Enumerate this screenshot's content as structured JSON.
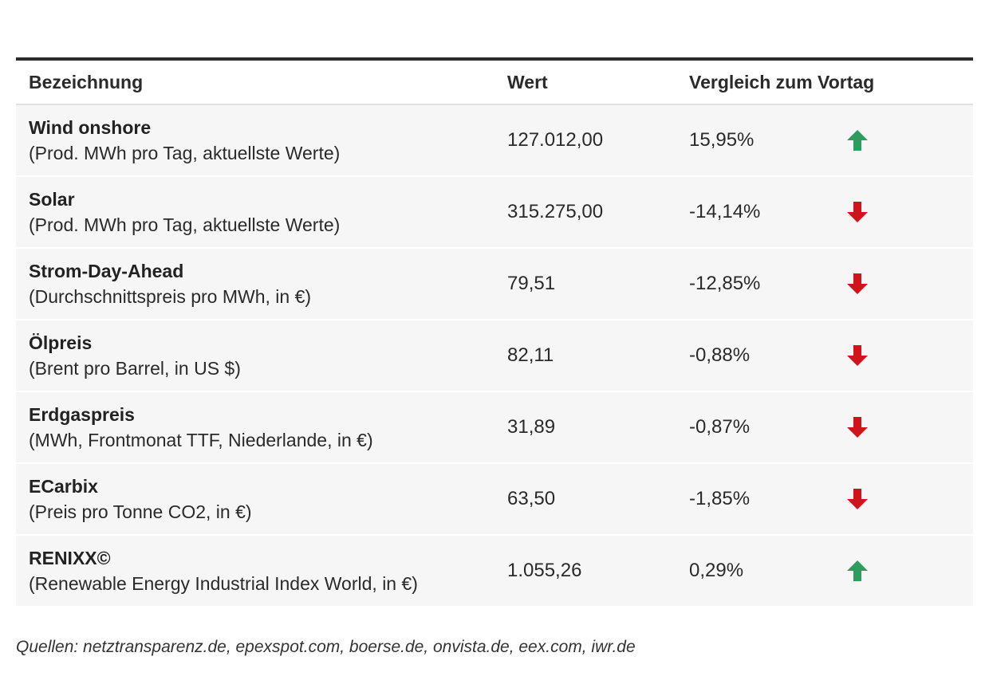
{
  "table": {
    "headers": {
      "name": "Bezeichnung",
      "value": "Wert",
      "change": "Vergleich zum Vortag"
    },
    "rows": [
      {
        "name": "Wind onshore",
        "desc": "(Prod. MWh pro Tag, aktuellste Werte)",
        "value": "127.012,00",
        "change": "15,95%",
        "direction": "up"
      },
      {
        "name": "Solar",
        "desc": "(Prod. MWh pro Tag, aktuellste Werte)",
        "value": "315.275,00",
        "change": "-14,14%",
        "direction": "down"
      },
      {
        "name": "Strom-Day-Ahead",
        "desc": "(Durchschnittspreis pro MWh, in €)",
        "value": "79,51",
        "change": "-12,85%",
        "direction": "down"
      },
      {
        "name": "Ölpreis",
        "desc": "(Brent pro Barrel, in US $)",
        "value": "82,11",
        "change": "-0,88%",
        "direction": "down"
      },
      {
        "name": "Erdgaspreis",
        "desc": "(MWh, Frontmonat TTF, Niederlande, in €)",
        "value": "31,89",
        "change": "-0,87%",
        "direction": "down"
      },
      {
        "name": "ECarbix",
        "desc": "(Preis pro Tonne CO2, in €)",
        "value": "63,50",
        "change": "-1,85%",
        "direction": "down"
      },
      {
        "name": "RENIXX©",
        "desc": "(Renewable Energy Industrial Index World, in €)",
        "value": "1.055,26",
        "change": "0,29%",
        "direction": "up"
      }
    ]
  },
  "colors": {
    "up": "#2e9b5f",
    "down": "#d0141b"
  },
  "icons": {
    "up": "arrow-up-icon",
    "down": "arrow-down-icon"
  },
  "footer": {
    "sources": "Quellen: netztransparenz.de, epexspot.com, boerse.de, onvista.de, eex.com, iwr.de"
  }
}
